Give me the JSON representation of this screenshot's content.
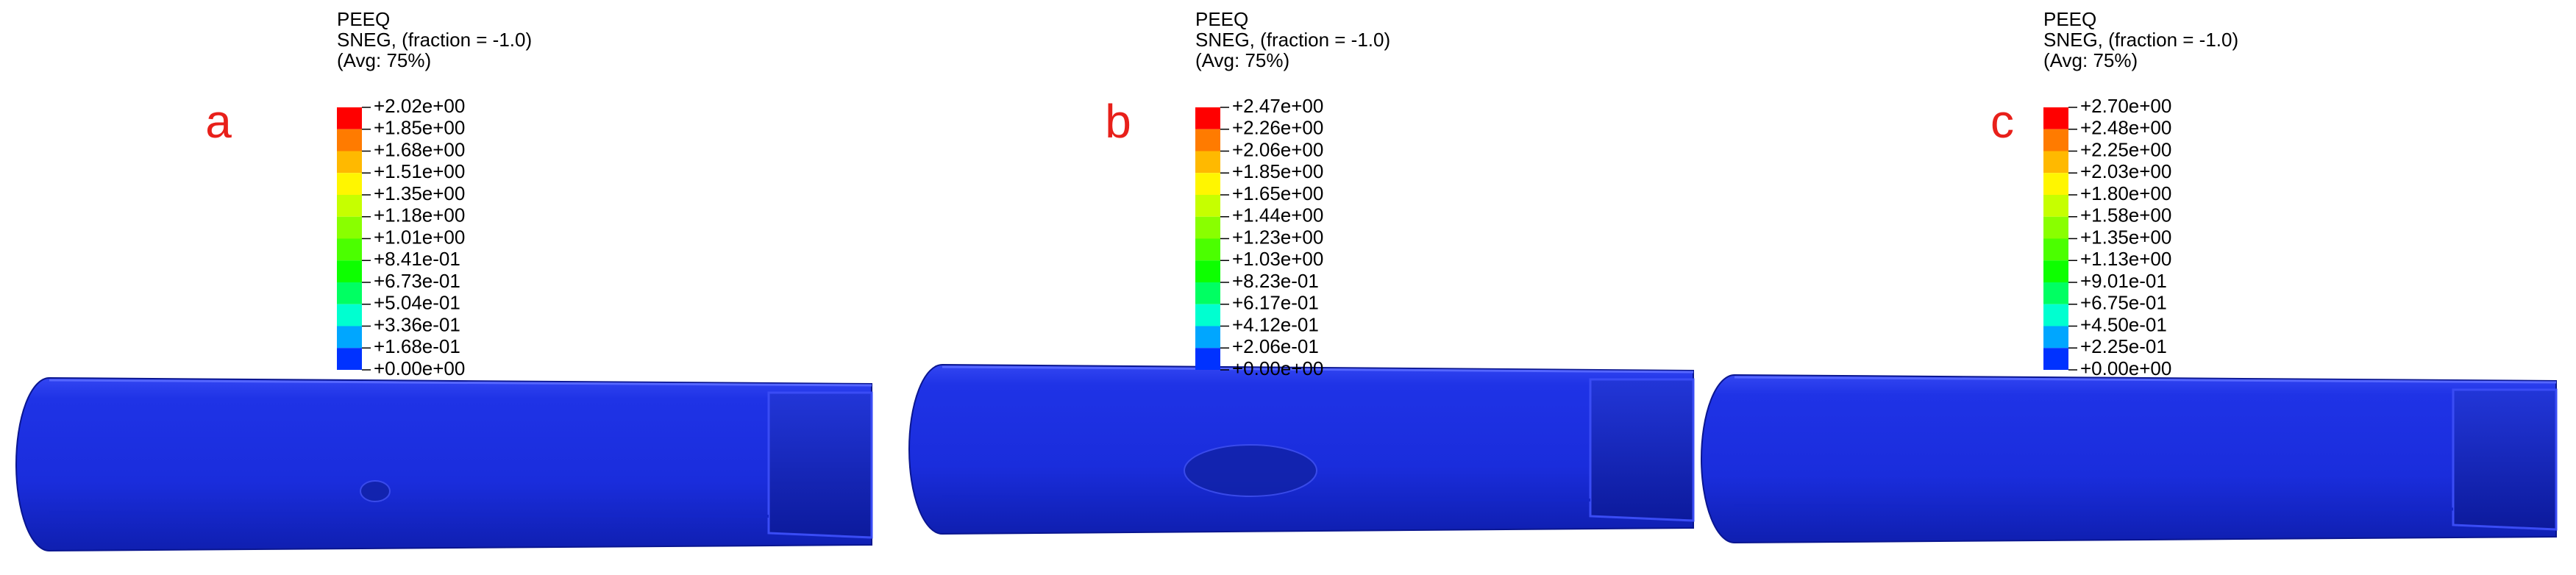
{
  "panels": [
    {
      "label": "a",
      "legend": {
        "title": [
          "PEEQ",
          "SNEG, (fraction = -1.0)",
          "(Avg: 75%)"
        ],
        "values": [
          "+2.02e+00",
          "+1.85e+00",
          "+1.68e+00",
          "+1.51e+00",
          "+1.35e+00",
          "+1.18e+00",
          "+1.01e+00",
          "+8.41e-01",
          "+6.73e-01",
          "+5.04e-01",
          "+3.36e-01",
          "+1.68e-01",
          "+0.00e+00"
        ]
      }
    },
    {
      "label": "b",
      "legend": {
        "title": [
          "PEEQ",
          "SNEG, (fraction = -1.0)",
          "(Avg: 75%)"
        ],
        "values": [
          "+2.47e+00",
          "+2.26e+00",
          "+2.06e+00",
          "+1.85e+00",
          "+1.65e+00",
          "+1.44e+00",
          "+1.23e+00",
          "+1.03e+00",
          "+8.23e-01",
          "+6.17e-01",
          "+4.12e-01",
          "+2.06e-01",
          "+0.00e+00"
        ]
      }
    },
    {
      "label": "c",
      "legend": {
        "title": [
          "PEEQ",
          "SNEG, (fraction = -1.0)",
          "(Avg: 75%)"
        ],
        "values": [
          "+2.70e+00",
          "+2.48e+00",
          "+2.25e+00",
          "+2.03e+00",
          "+1.80e+00",
          "+1.58e+00",
          "+1.35e+00",
          "+1.13e+00",
          "+9.01e-01",
          "+6.75e-01",
          "+4.50e-01",
          "+2.25e-01",
          "+0.00e+00"
        ]
      }
    }
  ]
}
